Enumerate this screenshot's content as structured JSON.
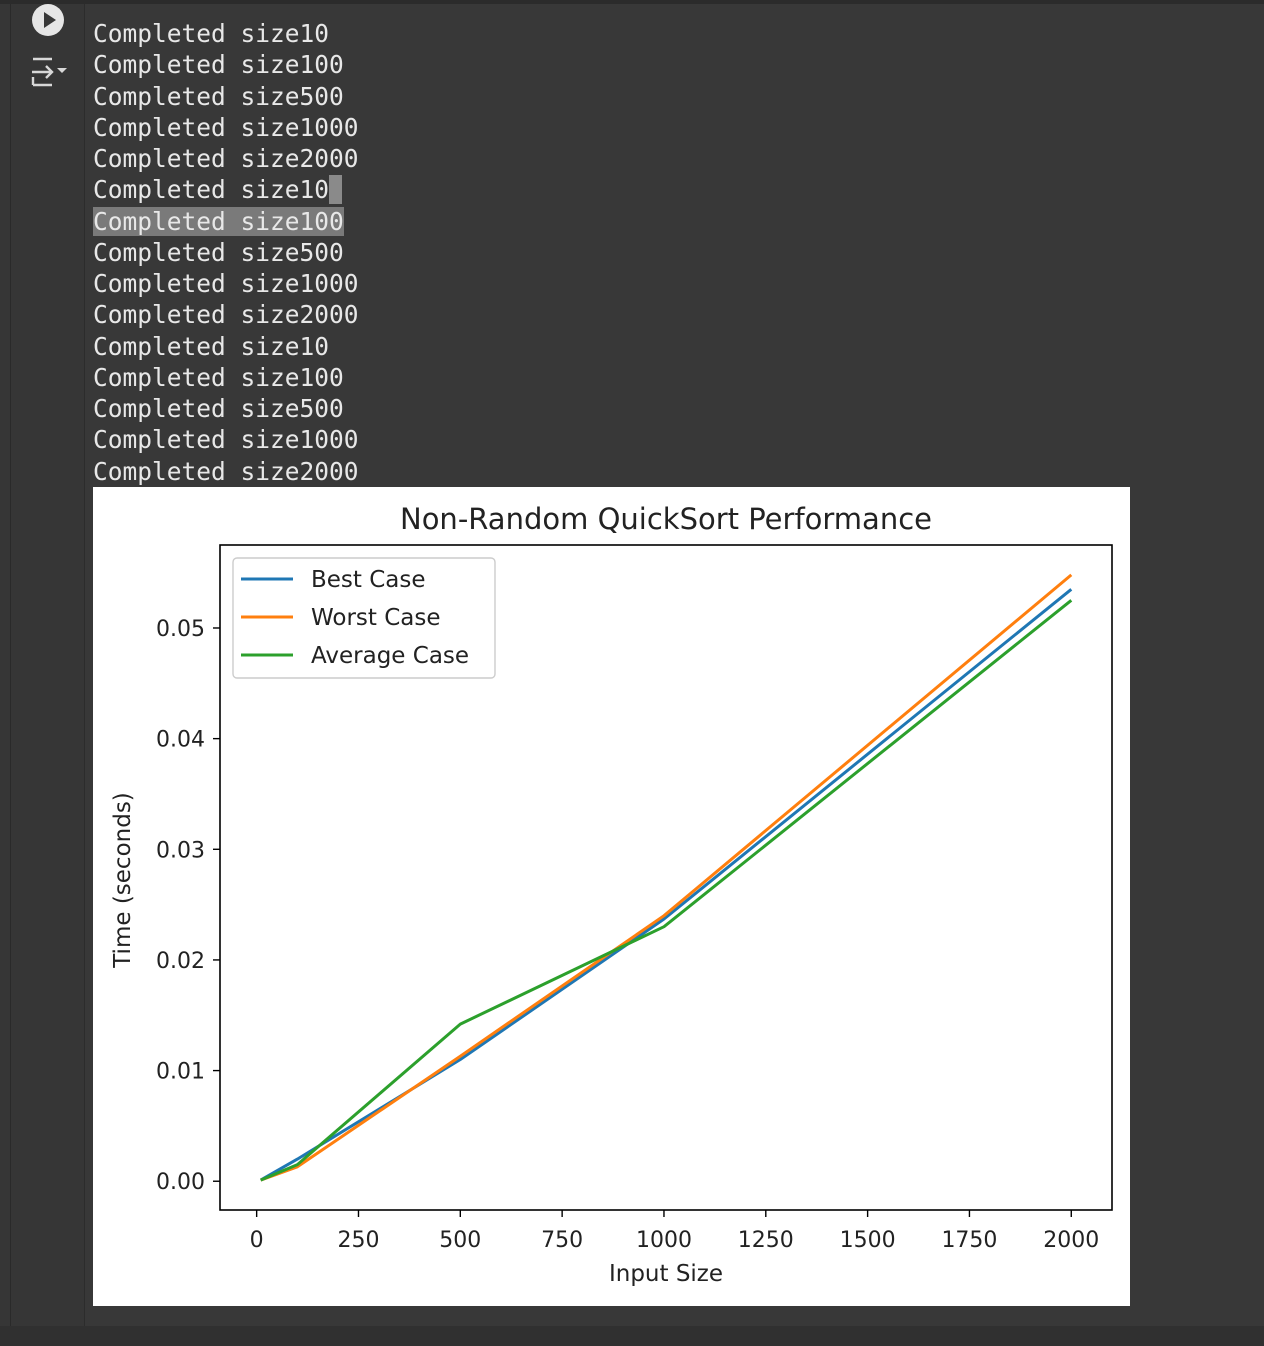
{
  "notebook": {
    "output_lines": [
      "Completed size10",
      "Completed size100",
      "Completed size500",
      "Completed size1000",
      "Completed size2000",
      "Completed size10",
      "Completed size100",
      "Completed size500",
      "Completed size1000",
      "Completed size2000",
      "Completed size10",
      "Completed size100",
      "Completed size500",
      "Completed size1000",
      "Completed size2000"
    ],
    "selected_line_index": 6,
    "cursor_line_index": 5,
    "icons": {
      "run": "play-circle-icon",
      "clear_output": "clear-output-icon"
    }
  },
  "chart_data": {
    "type": "line",
    "title": "Non-Random QuickSort Performance",
    "xlabel": "Input Size",
    "ylabel": "Time (seconds)",
    "x": [
      10,
      100,
      500,
      1000,
      2000
    ],
    "xticks": [
      0,
      250,
      500,
      750,
      1000,
      1250,
      1500,
      1750,
      2000
    ],
    "yticks": [
      0.0,
      0.01,
      0.02,
      0.03,
      0.04,
      0.05
    ],
    "ytick_labels": [
      "0.00",
      "0.01",
      "0.02",
      "0.03",
      "0.04",
      "0.05"
    ],
    "xlim": [
      -90,
      2100
    ],
    "ylim": [
      -0.0026,
      0.0575
    ],
    "legend_position": "upper-left",
    "grid": false,
    "series": [
      {
        "name": "Best Case",
        "color": "#1f77b4",
        "values": [
          0.0001,
          0.002,
          0.011,
          0.0237,
          0.0535
        ]
      },
      {
        "name": "Worst Case",
        "color": "#ff7f0e",
        "values": [
          0.0001,
          0.0013,
          0.0113,
          0.024,
          0.0548
        ]
      },
      {
        "name": "Average Case",
        "color": "#2ca02c",
        "values": [
          0.0001,
          0.0015,
          0.0142,
          0.023,
          0.0525
        ]
      }
    ]
  }
}
